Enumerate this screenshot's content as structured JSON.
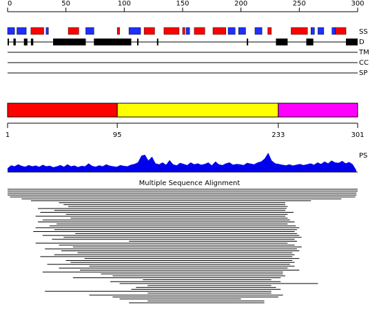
{
  "axis": {
    "lim": [
      0,
      300
    ],
    "ticks": [
      0,
      50,
      100,
      150,
      200,
      250,
      300
    ]
  },
  "tracks": {
    "ss": {
      "label": "SS",
      "helix": {
        "color": "#ff0000",
        "segments": [
          [
            20,
            31
          ],
          [
            52,
            61
          ],
          [
            94,
            96
          ],
          [
            117,
            126
          ],
          [
            134,
            147
          ],
          [
            150,
            152
          ],
          [
            160,
            169
          ],
          [
            176,
            187
          ],
          [
            223,
            226
          ],
          [
            243,
            257
          ],
          [
            281,
            290
          ]
        ]
      },
      "strand": {
        "color": "#1f2fff",
        "segments": [
          [
            0,
            6
          ],
          [
            8,
            16
          ],
          [
            33,
            35
          ],
          [
            67,
            74
          ],
          [
            104,
            114
          ],
          [
            153,
            156
          ],
          [
            189,
            195
          ],
          [
            198,
            204
          ],
          [
            212,
            218
          ],
          [
            260,
            263
          ],
          [
            266,
            271
          ],
          [
            278,
            281
          ]
        ]
      }
    },
    "d": {
      "label": "D",
      "color": "#000000",
      "segments": [
        [
          0,
          1
        ],
        [
          5,
          7
        ],
        [
          14,
          17
        ],
        [
          20,
          22
        ],
        [
          39,
          67
        ],
        [
          74,
          106
        ],
        [
          111,
          112
        ],
        [
          128,
          129
        ],
        [
          205,
          206
        ],
        [
          230,
          240
        ],
        [
          256,
          262
        ],
        [
          290,
          300
        ]
      ]
    },
    "tm": {
      "label": "TM"
    },
    "cc": {
      "label": "CC"
    },
    "sp": {
      "label": "SP"
    }
  },
  "domains": {
    "lim": [
      1,
      301
    ],
    "ticks": [
      1,
      95,
      233,
      301
    ],
    "items": [
      {
        "start": 1,
        "end": 95,
        "color": "#ff0000"
      },
      {
        "start": 95,
        "end": 233,
        "color": "#ffff00"
      },
      {
        "start": 233,
        "end": 301,
        "color": "#ff00ff"
      }
    ]
  },
  "ps": {
    "label": "PS",
    "color": "#0000ee",
    "ylim": [
      0,
      1
    ],
    "values": [
      0.2,
      0.35,
      0.3,
      0.4,
      0.32,
      0.28,
      0.36,
      0.3,
      0.34,
      0.27,
      0.38,
      0.3,
      0.33,
      0.25,
      0.3,
      0.36,
      0.28,
      0.4,
      0.3,
      0.34,
      0.26,
      0.32,
      0.3,
      0.45,
      0.32,
      0.28,
      0.35,
      0.3,
      0.4,
      0.33,
      0.3,
      0.27,
      0.36,
      0.32,
      0.3,
      0.38,
      0.42,
      0.5,
      0.85,
      0.9,
      0.6,
      0.8,
      0.45,
      0.4,
      0.5,
      0.38,
      0.62,
      0.4,
      0.35,
      0.48,
      0.42,
      0.36,
      0.5,
      0.4,
      0.45,
      0.38,
      0.42,
      0.5,
      0.35,
      0.55,
      0.4,
      0.36,
      0.45,
      0.5,
      0.38,
      0.42,
      0.4,
      0.36,
      0.48,
      0.44,
      0.4,
      0.5,
      0.55,
      0.7,
      1.0,
      0.6,
      0.45,
      0.42,
      0.38,
      0.35,
      0.4,
      0.34,
      0.38,
      0.42,
      0.36,
      0.4,
      0.45,
      0.38,
      0.5,
      0.42,
      0.55,
      0.45,
      0.6,
      0.5,
      0.48,
      0.58,
      0.45,
      0.52,
      0.4,
      0.1
    ]
  },
  "alignment": {
    "title": "Multiple Sequence Alignment",
    "rows": [
      [
        0,
        300
      ],
      [
        0,
        300
      ],
      [
        0,
        299
      ],
      [
        0,
        299
      ],
      [
        2,
        298
      ],
      [
        12,
        286
      ],
      [
        20,
        260
      ],
      [
        44,
        238
      ],
      [
        48,
        238
      ],
      [
        52,
        240
      ],
      [
        26,
        239
      ],
      [
        40,
        238
      ],
      [
        28,
        245
      ],
      [
        50,
        240
      ],
      [
        24,
        238
      ],
      [
        54,
        240
      ],
      [
        30,
        242
      ],
      [
        26,
        246
      ],
      [
        42,
        240
      ],
      [
        36,
        247
      ],
      [
        24,
        250
      ],
      [
        40,
        248
      ],
      [
        22,
        246
      ],
      [
        58,
        248
      ],
      [
        30,
        250
      ],
      [
        48,
        252
      ],
      [
        38,
        246
      ],
      [
        104,
        248
      ],
      [
        24,
        240
      ],
      [
        44,
        246
      ],
      [
        56,
        252
      ],
      [
        32,
        248
      ],
      [
        46,
        250
      ],
      [
        60,
        244
      ],
      [
        40,
        246
      ],
      [
        28,
        244
      ],
      [
        66,
        250
      ],
      [
        50,
        244
      ],
      [
        54,
        246
      ],
      [
        34,
        242
      ],
      [
        70,
        246
      ],
      [
        44,
        240
      ],
      [
        62,
        250
      ],
      [
        30,
        236
      ],
      [
        80,
        236
      ],
      [
        90,
        238
      ],
      [
        56,
        234
      ],
      [
        116,
        226
      ],
      [
        88,
        234
      ],
      [
        96,
        266
      ],
      [
        120,
        226
      ],
      [
        110,
        230
      ],
      [
        106,
        234
      ],
      [
        32,
        226
      ],
      [
        120,
        226
      ],
      [
        70,
        236
      ],
      [
        90,
        232
      ],
      [
        96,
        200
      ],
      [
        120,
        220
      ],
      [
        104,
        220
      ]
    ]
  }
}
